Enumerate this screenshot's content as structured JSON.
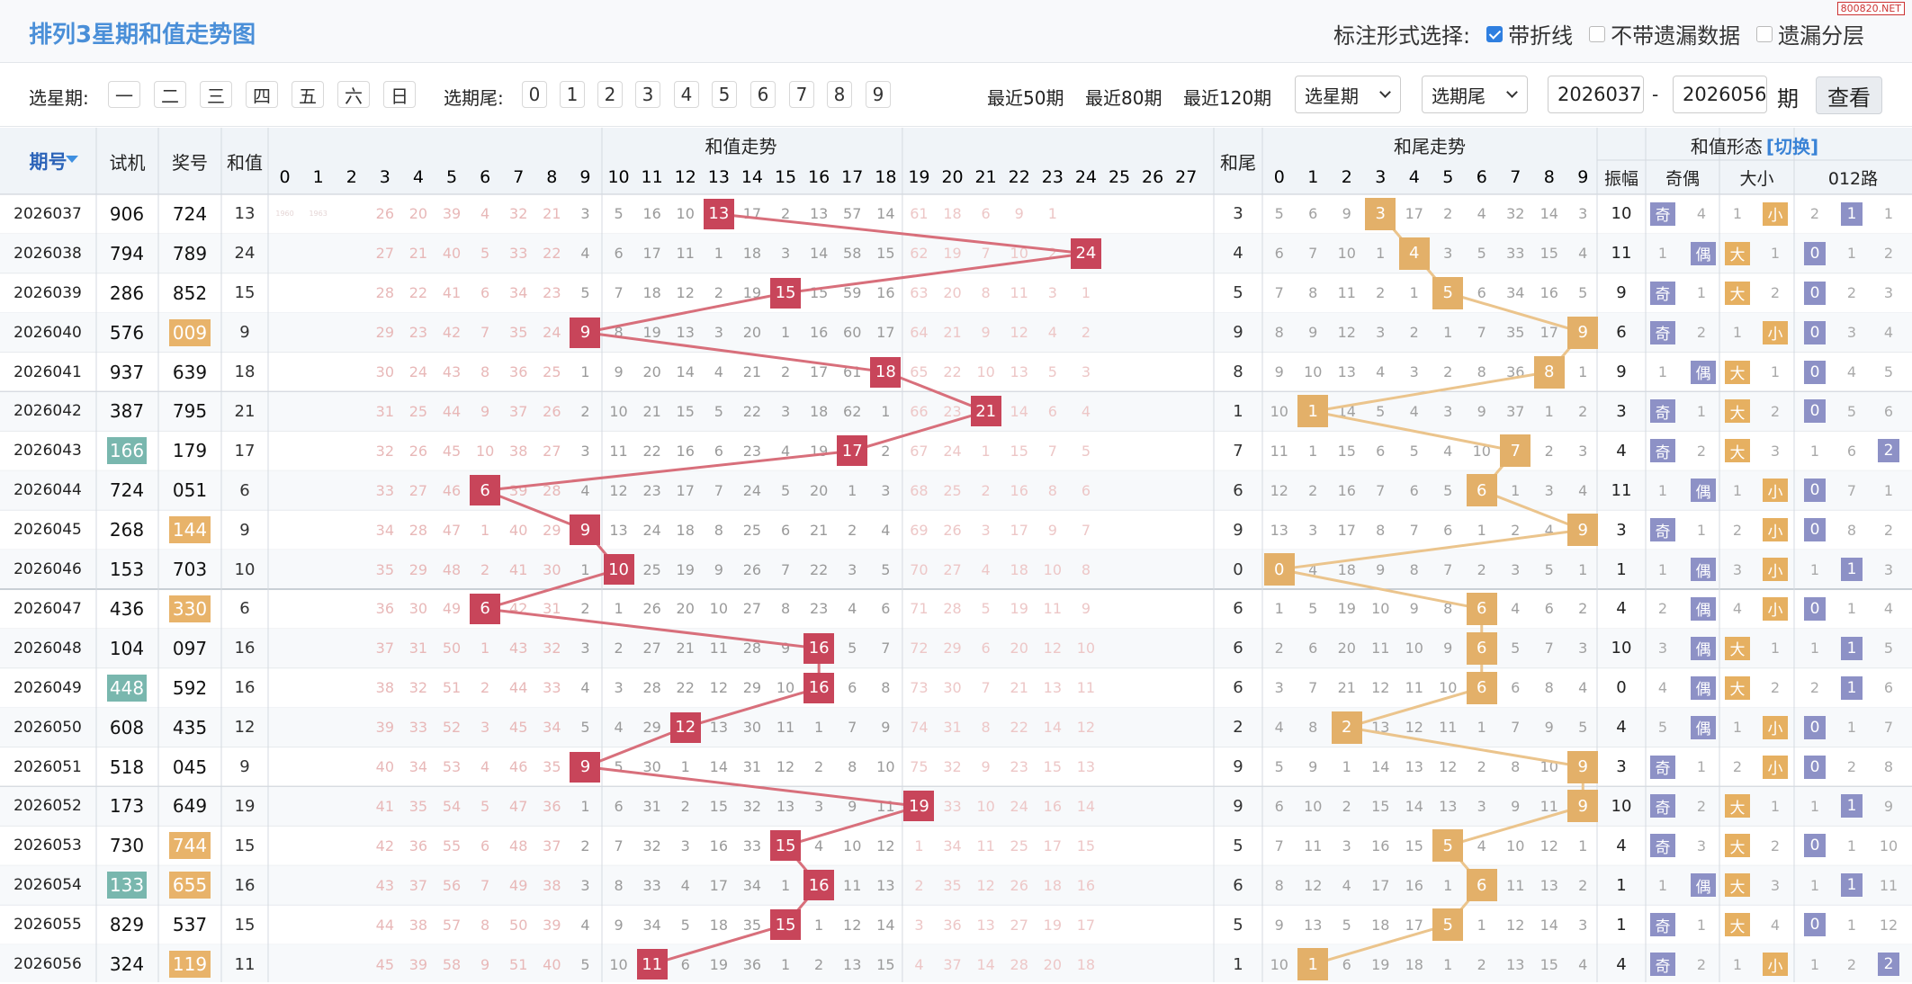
{
  "title": "排列3星期和值走势图",
  "watermark": "800820.NET",
  "mark_options": {
    "label": "标注形式选择:",
    "items": [
      {
        "label": "带折线",
        "checked": true
      },
      {
        "label": "不带遗漏数据",
        "checked": false
      },
      {
        "label": "遗漏分层",
        "checked": false
      }
    ]
  },
  "filters": {
    "weekday_label": "选星期:",
    "weekdays": [
      "一",
      "二",
      "三",
      "四",
      "五",
      "六",
      "日"
    ],
    "tail_label": "选期尾:",
    "tails": [
      "0",
      "1",
      "2",
      "3",
      "4",
      "5",
      "6",
      "7",
      "8",
      "9"
    ],
    "recent": [
      "最近50期",
      "最近80期",
      "最近120期"
    ],
    "select_weekday": "选星期",
    "select_tail": "选期尾",
    "from": "2026037",
    "dash": "-",
    "to": "2026056",
    "unit": "期",
    "query": "查看"
  },
  "headers": {
    "period": "期号",
    "trial": "试机",
    "prize": "奖号",
    "sum": "和值",
    "sum_trend": "和值走势",
    "tail": "和尾",
    "tail_trend": "和尾走势",
    "shape": "和值形态",
    "switch": "[切换]",
    "amp": "振幅",
    "oddeven": "奇偶",
    "bigsmall": "大小",
    "route": "012路",
    "sum_cols": [
      "0",
      "1",
      "2",
      "3",
      "4",
      "5",
      "6",
      "7",
      "8",
      "9",
      "10",
      "11",
      "12",
      "13",
      "14",
      "15",
      "16",
      "17",
      "18",
      "19",
      "20",
      "21",
      "22",
      "23",
      "24",
      "25",
      "26",
      "27"
    ],
    "tail_cols": [
      "0",
      "1",
      "2",
      "3",
      "4",
      "5",
      "6",
      "7",
      "8",
      "9"
    ]
  },
  "colors": {
    "sum_ball": "#c8455a",
    "tail_ball": "#e3b069",
    "trial_hl": "#79b7ae",
    "prize_hl": "#e8b36a",
    "odd_tag": "#8d91c6",
    "big_tag": "#e6b061",
    "route_tag": "#8d91c6",
    "miss": "#e8b8b8"
  },
  "rows": [
    {
      "period": "2026037",
      "trial": "906",
      "prize": "724",
      "sum": "13",
      "tail": "3",
      "amp": "10",
      "oe": "奇",
      "oe_miss": "4",
      "bs": "小",
      "bs_miss": "1",
      "route": "1",
      "r0": "2",
      "r2": "1",
      "th": 0,
      "ph": 0,
      "sum_miss": [
        "1960",
        "1963",
        "",
        "26",
        "20",
        "39",
        "4",
        "32",
        "21",
        "3",
        "5",
        "16",
        "10",
        "",
        "17",
        "2",
        "13",
        "57",
        "14",
        "61",
        "18",
        "6",
        "9",
        "1",
        "",
        "",
        "",
        ""
      ],
      "tail_miss": [
        "5",
        "6",
        "9",
        "",
        "17",
        "2",
        "4",
        "32",
        "14",
        "3"
      ]
    },
    {
      "period": "2026038",
      "trial": "794",
      "prize": "789",
      "sum": "24",
      "tail": "4",
      "amp": "11",
      "oe": "偶",
      "oe_miss": "1",
      "bs": "大",
      "bs_miss": "1",
      "route": "0",
      "r1": "1",
      "r2": "2",
      "th": 0,
      "ph": 0,
      "sum_miss": [
        "",
        "",
        "",
        "27",
        "21",
        "40",
        "5",
        "33",
        "22",
        "4",
        "6",
        "17",
        "11",
        "1",
        "18",
        "3",
        "14",
        "58",
        "15",
        "62",
        "19",
        "7",
        "10",
        "2",
        "",
        "",
        "",
        ""
      ],
      "tail_miss": [
        "6",
        "7",
        "10",
        "1",
        "",
        "3",
        "5",
        "33",
        "15",
        "4"
      ]
    },
    {
      "period": "2026039",
      "trial": "286",
      "prize": "852",
      "sum": "15",
      "tail": "5",
      "amp": "9",
      "oe": "奇",
      "oe_miss": "1",
      "bs": "大",
      "bs_miss": "2",
      "route": "0",
      "r1": "2",
      "r2": "3",
      "th": 0,
      "ph": 0,
      "sum_miss": [
        "",
        "",
        "",
        "28",
        "22",
        "41",
        "6",
        "34",
        "23",
        "5",
        "7",
        "18",
        "12",
        "2",
        "19",
        "",
        "15",
        "59",
        "16",
        "63",
        "20",
        "8",
        "11",
        "3",
        "1",
        "",
        "",
        ""
      ],
      "tail_miss": [
        "7",
        "8",
        "11",
        "2",
        "1",
        "",
        "6",
        "34",
        "16",
        "5"
      ]
    },
    {
      "period": "2026040",
      "trial": "576",
      "prize": "009",
      "sum": "9",
      "tail": "9",
      "amp": "6",
      "oe": "奇",
      "oe_miss": "2",
      "bs": "小",
      "bs_miss": "1",
      "route": "0",
      "r1": "3",
      "r2": "4",
      "th": 0,
      "ph": 1,
      "sum_miss": [
        "",
        "",
        "",
        "29",
        "23",
        "42",
        "7",
        "35",
        "24",
        "",
        "8",
        "19",
        "13",
        "3",
        "20",
        "1",
        "16",
        "60",
        "17",
        "64",
        "21",
        "9",
        "12",
        "4",
        "2",
        "",
        "",
        ""
      ],
      "tail_miss": [
        "8",
        "9",
        "12",
        "3",
        "2",
        "1",
        "7",
        "35",
        "17",
        ""
      ]
    },
    {
      "period": "2026041",
      "trial": "937",
      "prize": "639",
      "sum": "18",
      "tail": "8",
      "amp": "9",
      "oe": "偶",
      "oe_miss": "1",
      "bs": "大",
      "bs_miss": "1",
      "route": "0",
      "r1": "4",
      "r2": "5",
      "th": 0,
      "ph": 0,
      "sum_miss": [
        "",
        "",
        "",
        "30",
        "24",
        "43",
        "8",
        "36",
        "25",
        "1",
        "9",
        "20",
        "14",
        "4",
        "21",
        "2",
        "17",
        "61",
        "",
        "65",
        "22",
        "10",
        "13",
        "5",
        "3",
        "",
        "",
        ""
      ],
      "tail_miss": [
        "9",
        "10",
        "13",
        "4",
        "3",
        "2",
        "8",
        "36",
        "",
        "1"
      ]
    },
    {
      "period": "2026042",
      "trial": "387",
      "prize": "795",
      "sum": "21",
      "tail": "1",
      "amp": "3",
      "oe": "奇",
      "oe_miss": "1",
      "bs": "大",
      "bs_miss": "2",
      "route": "0",
      "r1": "5",
      "r2": "6",
      "th": 0,
      "ph": 0,
      "sum_miss": [
        "",
        "",
        "",
        "31",
        "25",
        "44",
        "9",
        "37",
        "26",
        "2",
        "10",
        "21",
        "15",
        "5",
        "22",
        "3",
        "18",
        "62",
        "1",
        "66",
        "23",
        "",
        "14",
        "6",
        "4",
        "",
        "",
        ""
      ],
      "tail_miss": [
        "10",
        "",
        "14",
        "5",
        "4",
        "3",
        "9",
        "37",
        "1",
        "2"
      ]
    },
    {
      "period": "2026043",
      "trial": "166",
      "prize": "179",
      "sum": "17",
      "tail": "7",
      "amp": "4",
      "oe": "奇",
      "oe_miss": "2",
      "bs": "大",
      "bs_miss": "3",
      "route": "2",
      "r0": "1",
      "r1": "6",
      "th": 1,
      "ph": 0,
      "sum_miss": [
        "",
        "",
        "",
        "32",
        "26",
        "45",
        "10",
        "38",
        "27",
        "3",
        "11",
        "22",
        "16",
        "6",
        "23",
        "4",
        "19",
        "",
        "2",
        "67",
        "24",
        "1",
        "15",
        "7",
        "5",
        "",
        "",
        ""
      ],
      "tail_miss": [
        "11",
        "1",
        "15",
        "6",
        "5",
        "4",
        "10",
        "",
        "2",
        "3"
      ]
    },
    {
      "period": "2026044",
      "trial": "724",
      "prize": "051",
      "sum": "6",
      "tail": "6",
      "amp": "11",
      "oe": "偶",
      "oe_miss": "1",
      "bs": "小",
      "bs_miss": "1",
      "route": "0",
      "r1": "7",
      "r2": "1",
      "th": 0,
      "ph": 0,
      "sum_miss": [
        "",
        "",
        "",
        "33",
        "27",
        "46",
        "",
        "39",
        "28",
        "4",
        "12",
        "23",
        "17",
        "7",
        "24",
        "5",
        "20",
        "1",
        "3",
        "68",
        "25",
        "2",
        "16",
        "8",
        "6",
        "",
        "",
        ""
      ],
      "tail_miss": [
        "12",
        "2",
        "16",
        "7",
        "6",
        "5",
        "",
        "1",
        "3",
        "4"
      ]
    },
    {
      "period": "2026045",
      "trial": "268",
      "prize": "144",
      "sum": "9",
      "tail": "9",
      "amp": "3",
      "oe": "奇",
      "oe_miss": "1",
      "bs": "小",
      "bs_miss": "2",
      "route": "0",
      "r1": "8",
      "r2": "2",
      "th": 0,
      "ph": 1,
      "sum_miss": [
        "",
        "",
        "",
        "34",
        "28",
        "47",
        "1",
        "40",
        "29",
        "",
        "13",
        "24",
        "18",
        "8",
        "25",
        "6",
        "21",
        "2",
        "4",
        "69",
        "26",
        "3",
        "17",
        "9",
        "7",
        "",
        "",
        ""
      ],
      "tail_miss": [
        "13",
        "3",
        "17",
        "8",
        "7",
        "6",
        "1",
        "2",
        "4",
        ""
      ]
    },
    {
      "period": "2026046",
      "trial": "153",
      "prize": "703",
      "sum": "10",
      "tail": "0",
      "amp": "1",
      "oe": "偶",
      "oe_miss": "1",
      "bs": "小",
      "bs_miss": "3",
      "route": "1",
      "r0": "1",
      "r2": "3",
      "th": 0,
      "ph": 0,
      "sum_miss": [
        "",
        "",
        "",
        "35",
        "29",
        "48",
        "2",
        "41",
        "30",
        "1",
        "",
        "25",
        "19",
        "9",
        "26",
        "7",
        "22",
        "3",
        "5",
        "70",
        "27",
        "4",
        "18",
        "10",
        "8",
        "",
        "",
        ""
      ],
      "tail_miss": [
        "",
        "4",
        "18",
        "9",
        "8",
        "7",
        "2",
        "3",
        "5",
        "1"
      ]
    },
    {
      "period": "2026047",
      "trial": "436",
      "prize": "330",
      "sum": "6",
      "tail": "6",
      "amp": "4",
      "oe": "偶",
      "oe_miss": "2",
      "bs": "小",
      "bs_miss": "4",
      "route": "0",
      "r1": "1",
      "r2": "4",
      "th": 0,
      "ph": 1,
      "sum_miss": [
        "",
        "",
        "",
        "36",
        "30",
        "49",
        "",
        "42",
        "31",
        "2",
        "1",
        "26",
        "20",
        "10",
        "27",
        "8",
        "23",
        "4",
        "6",
        "71",
        "28",
        "5",
        "19",
        "11",
        "9",
        "",
        "",
        ""
      ],
      "tail_miss": [
        "1",
        "5",
        "19",
        "10",
        "9",
        "8",
        "",
        "4",
        "6",
        "2"
      ]
    },
    {
      "period": "2026048",
      "trial": "104",
      "prize": "097",
      "sum": "16",
      "tail": "6",
      "amp": "10",
      "oe": "偶",
      "oe_miss": "3",
      "bs": "大",
      "bs_miss": "1",
      "route": "1",
      "r0": "1",
      "r2": "5",
      "th": 0,
      "ph": 0,
      "sum_miss": [
        "",
        "",
        "",
        "37",
        "31",
        "50",
        "1",
        "43",
        "32",
        "3",
        "2",
        "27",
        "21",
        "11",
        "28",
        "9",
        "",
        "5",
        "7",
        "72",
        "29",
        "6",
        "20",
        "12",
        "10",
        "",
        "",
        ""
      ],
      "tail_miss": [
        "2",
        "6",
        "20",
        "11",
        "10",
        "9",
        "",
        "5",
        "7",
        "3"
      ]
    },
    {
      "period": "2026049",
      "trial": "448",
      "prize": "592",
      "sum": "16",
      "tail": "6",
      "amp": "0",
      "oe": "偶",
      "oe_miss": "4",
      "bs": "大",
      "bs_miss": "2",
      "route": "1",
      "r0": "2",
      "r2": "6",
      "th": 1,
      "ph": 0,
      "sum_miss": [
        "",
        "",
        "",
        "38",
        "32",
        "51",
        "2",
        "44",
        "33",
        "4",
        "3",
        "28",
        "22",
        "12",
        "29",
        "10",
        "",
        "6",
        "8",
        "73",
        "30",
        "7",
        "21",
        "13",
        "11",
        "",
        "",
        ""
      ],
      "tail_miss": [
        "3",
        "7",
        "21",
        "12",
        "11",
        "10",
        "",
        "6",
        "8",
        "4"
      ]
    },
    {
      "period": "2026050",
      "trial": "608",
      "prize": "435",
      "sum": "12",
      "tail": "2",
      "amp": "4",
      "oe": "偶",
      "oe_miss": "5",
      "bs": "小",
      "bs_miss": "1",
      "route": "0",
      "r1": "1",
      "r2": "7",
      "th": 0,
      "ph": 0,
      "sum_miss": [
        "",
        "",
        "",
        "39",
        "33",
        "52",
        "3",
        "45",
        "34",
        "5",
        "4",
        "29",
        "",
        "13",
        "30",
        "11",
        "1",
        "7",
        "9",
        "74",
        "31",
        "8",
        "22",
        "14",
        "12",
        "",
        "",
        ""
      ],
      "tail_miss": [
        "4",
        "8",
        "",
        "13",
        "12",
        "11",
        "1",
        "7",
        "9",
        "5"
      ]
    },
    {
      "period": "2026051",
      "trial": "518",
      "prize": "045",
      "sum": "9",
      "tail": "9",
      "amp": "3",
      "oe": "奇",
      "oe_miss": "1",
      "bs": "小",
      "bs_miss": "2",
      "route": "0",
      "r1": "2",
      "r2": "8",
      "th": 0,
      "ph": 0,
      "sum_miss": [
        "",
        "",
        "",
        "40",
        "34",
        "53",
        "4",
        "46",
        "35",
        "",
        "5",
        "30",
        "1",
        "14",
        "31",
        "12",
        "2",
        "8",
        "10",
        "75",
        "32",
        "9",
        "23",
        "15",
        "13",
        "",
        "",
        ""
      ],
      "tail_miss": [
        "5",
        "9",
        "1",
        "14",
        "13",
        "12",
        "2",
        "8",
        "10",
        ""
      ]
    },
    {
      "period": "2026052",
      "trial": "173",
      "prize": "649",
      "sum": "19",
      "tail": "9",
      "amp": "10",
      "oe": "奇",
      "oe_miss": "2",
      "bs": "大",
      "bs_miss": "1",
      "route": "1",
      "r0": "1",
      "r2": "9",
      "th": 0,
      "ph": 0,
      "sum_miss": [
        "",
        "",
        "",
        "41",
        "35",
        "54",
        "5",
        "47",
        "36",
        "1",
        "6",
        "31",
        "2",
        "15",
        "32",
        "13",
        "3",
        "9",
        "11",
        "",
        "33",
        "10",
        "24",
        "16",
        "14",
        "",
        "",
        ""
      ],
      "tail_miss": [
        "6",
        "10",
        "2",
        "15",
        "14",
        "13",
        "3",
        "9",
        "11",
        ""
      ]
    },
    {
      "period": "2026053",
      "trial": "730",
      "prize": "744",
      "sum": "15",
      "tail": "5",
      "amp": "4",
      "oe": "奇",
      "oe_miss": "3",
      "bs": "大",
      "bs_miss": "2",
      "route": "0",
      "r1": "1",
      "r2": "10",
      "th": 0,
      "ph": 1,
      "sum_miss": [
        "",
        "",
        "",
        "42",
        "36",
        "55",
        "6",
        "48",
        "37",
        "2",
        "7",
        "32",
        "3",
        "16",
        "33",
        "",
        "4",
        "10",
        "12",
        "1",
        "34",
        "11",
        "25",
        "17",
        "15",
        "",
        "",
        ""
      ],
      "tail_miss": [
        "7",
        "11",
        "3",
        "16",
        "15",
        "",
        "4",
        "10",
        "12",
        "1"
      ]
    },
    {
      "period": "2026054",
      "trial": "133",
      "prize": "655",
      "sum": "16",
      "tail": "6",
      "amp": "1",
      "oe": "偶",
      "oe_miss": "1",
      "bs": "大",
      "bs_miss": "3",
      "route": "1",
      "r0": "1",
      "r2": "11",
      "th": 1,
      "ph": 1,
      "sum_miss": [
        "",
        "",
        "",
        "43",
        "37",
        "56",
        "7",
        "49",
        "38",
        "3",
        "8",
        "33",
        "4",
        "17",
        "34",
        "1",
        "",
        "11",
        "13",
        "2",
        "35",
        "12",
        "26",
        "18",
        "16",
        "",
        "",
        ""
      ],
      "tail_miss": [
        "8",
        "12",
        "4",
        "17",
        "16",
        "1",
        "",
        "11",
        "13",
        "2"
      ]
    },
    {
      "period": "2026055",
      "trial": "829",
      "prize": "537",
      "sum": "15",
      "tail": "5",
      "amp": "1",
      "oe": "奇",
      "oe_miss": "1",
      "bs": "大",
      "bs_miss": "4",
      "route": "0",
      "r1": "1",
      "r2": "12",
      "th": 0,
      "ph": 0,
      "sum_miss": [
        "",
        "",
        "",
        "44",
        "38",
        "57",
        "8",
        "50",
        "39",
        "4",
        "9",
        "34",
        "5",
        "18",
        "35",
        "",
        "1",
        "12",
        "14",
        "3",
        "36",
        "13",
        "27",
        "19",
        "17",
        "",
        "",
        ""
      ],
      "tail_miss": [
        "9",
        "13",
        "5",
        "18",
        "17",
        "",
        "1",
        "12",
        "14",
        "3"
      ]
    },
    {
      "period": "2026056",
      "trial": "324",
      "prize": "119",
      "sum": "11",
      "tail": "1",
      "amp": "4",
      "oe": "奇",
      "oe_miss": "2",
      "bs": "小",
      "bs_miss": "1",
      "route": "2",
      "r0": "1",
      "r1": "2",
      "th": 0,
      "ph": 1,
      "sum_miss": [
        "",
        "",
        "",
        "45",
        "39",
        "58",
        "9",
        "51",
        "40",
        "5",
        "10",
        "",
        "6",
        "19",
        "36",
        "1",
        "2",
        "13",
        "15",
        "4",
        "37",
        "14",
        "28",
        "20",
        "18",
        "",
        "",
        ""
      ],
      "tail_miss": [
        "10",
        "",
        "6",
        "19",
        "18",
        "1",
        "2",
        "13",
        "15",
        "4"
      ]
    }
  ]
}
